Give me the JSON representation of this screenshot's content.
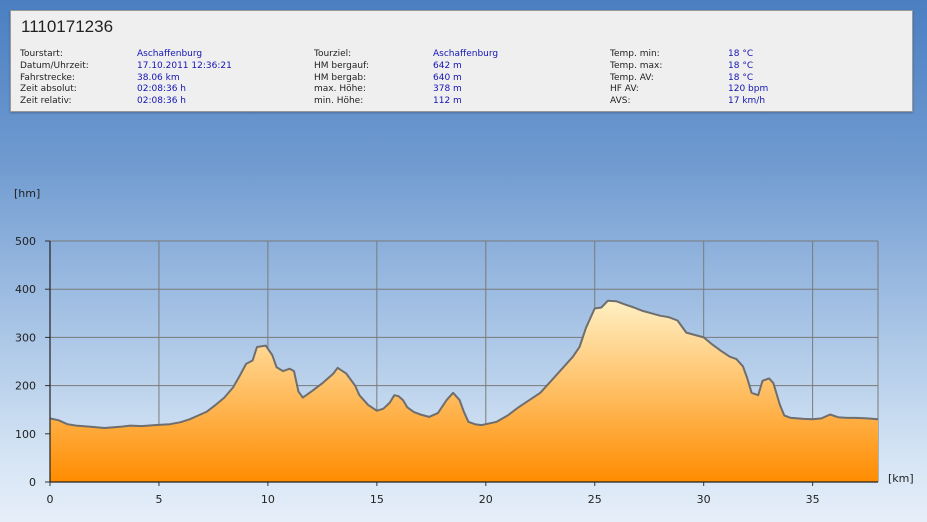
{
  "tour": {
    "title": "1110171236",
    "col1": [
      {
        "label": "Tourstart:",
        "value": "Aschaffenburg"
      },
      {
        "label": "Datum/Uhrzeit:",
        "value": "17.10.2011 12:36:21"
      },
      {
        "label": "Fahrstrecke:",
        "value": "38.06 km"
      },
      {
        "label": "Zeit absolut:",
        "value": "02:08:36 h"
      },
      {
        "label": "Zeit relativ:",
        "value": "02:08:36 h"
      }
    ],
    "col2": [
      {
        "label": "Tourziel:",
        "value": "Aschaffenburg"
      },
      {
        "label": "HM bergauf:",
        "value": "642 m"
      },
      {
        "label": "HM bergab:",
        "value": "640 m"
      },
      {
        "label": "max. Höhe:",
        "value": "378 m"
      },
      {
        "label": "min. Höhe:",
        "value": "112 m"
      }
    ],
    "col3": [
      {
        "label": "Temp. min:",
        "value": "18 °C"
      },
      {
        "label": "Temp. max:",
        "value": "18 °C"
      },
      {
        "label": "Temp. AV:",
        "value": "18 °C"
      },
      {
        "label": "HF AV:",
        "value": "120 bpm"
      },
      {
        "label": "AVS:",
        "value": "17 km/h"
      }
    ]
  },
  "colors": {
    "fill_top": "#fff0c4",
    "fill_bottom": "#ff8c00",
    "line": "#6e6e6e",
    "grid": "#7a7a7a"
  },
  "chart_data": {
    "type": "area",
    "xlabel": "[km]",
    "ylabel": "[hm]",
    "xlim": [
      0,
      38
    ],
    "ylim": [
      0,
      500
    ],
    "xticks": [
      "0",
      "5",
      "10",
      "15",
      "20",
      "25",
      "30",
      "35"
    ],
    "yticks": [
      "0",
      "100",
      "200",
      "300",
      "400",
      "500"
    ],
    "grid": true,
    "series": [
      {
        "x": [
          0,
          0.4,
          0.8,
          1.2,
          1.8,
          2.5,
          3.3,
          3.7,
          4.2,
          4.8,
          5.5,
          6.0,
          6.4,
          6.8,
          7.2,
          7.6,
          8.0,
          8.4,
          8.7,
          9.0,
          9.3,
          9.5,
          9.9,
          10.2,
          10.4,
          10.7,
          11.0,
          11.2,
          11.4,
          11.6,
          12.0,
          12.5,
          13.0,
          13.2,
          13.6,
          14.0,
          14.2,
          14.6,
          15.0,
          15.3,
          15.6,
          15.8,
          16.0,
          16.2,
          16.4,
          16.7,
          17.0,
          17.4,
          17.8,
          18.2,
          18.5,
          18.8,
          19.0,
          19.2,
          19.5,
          19.8,
          20.0,
          20.5,
          21.0,
          21.5,
          22.0,
          22.5,
          23.0,
          23.3,
          23.7,
          24.0,
          24.3,
          24.6,
          25.0,
          25.3,
          25.6,
          26.0,
          26.4,
          26.8,
          27.2,
          27.6,
          28.0,
          28.4,
          28.8,
          29.2,
          29.6,
          30.0,
          30.4,
          30.8,
          31.2,
          31.5,
          31.8,
          32.0,
          32.2,
          32.5,
          32.7,
          33.0,
          33.2,
          33.5,
          33.7,
          34.0,
          34.3,
          34.6,
          35.0,
          35.4,
          35.8,
          36.2,
          36.6,
          37.0,
          37.5,
          38.0
        ],
        "values": [
          132,
          128,
          120,
          117,
          115,
          112,
          115,
          117,
          116,
          118,
          120,
          124,
          130,
          138,
          146,
          160,
          175,
          196,
          220,
          245,
          252,
          280,
          283,
          263,
          238,
          230,
          235,
          230,
          188,
          175,
          188,
          205,
          225,
          237,
          225,
          200,
          180,
          160,
          148,
          152,
          165,
          180,
          178,
          170,
          155,
          145,
          140,
          135,
          143,
          170,
          185,
          170,
          145,
          125,
          120,
          118,
          120,
          125,
          138,
          155,
          170,
          185,
          210,
          225,
          245,
          260,
          280,
          320,
          360,
          362,
          376,
          375,
          368,
          362,
          355,
          350,
          345,
          342,
          335,
          310,
          305,
          300,
          285,
          272,
          260,
          255,
          240,
          215,
          185,
          180,
          210,
          215,
          205,
          160,
          138,
          133,
          132,
          131,
          130,
          132,
          140,
          134,
          133,
          133,
          132,
          130
        ]
      }
    ]
  }
}
